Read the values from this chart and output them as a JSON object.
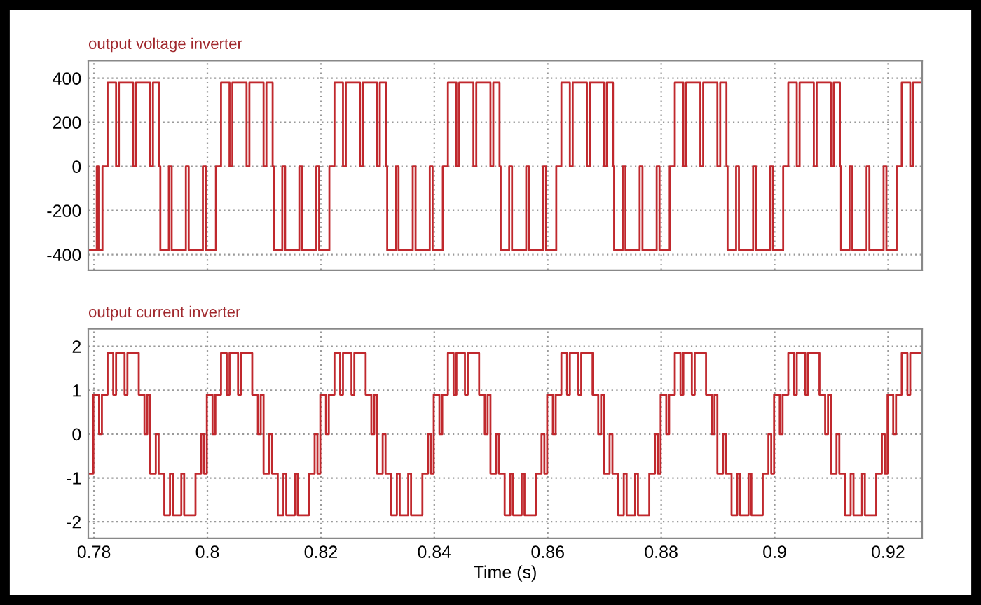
{
  "chart_data": [
    {
      "type": "step",
      "title": "output voltage inverter",
      "xlim": [
        0.779,
        0.926
      ],
      "xticks": [
        0.78,
        0.8,
        0.82,
        0.84,
        0.86,
        0.88,
        0.9,
        0.92
      ],
      "ylim": [
        -470,
        480
      ],
      "yticks": [
        -400,
        -200,
        0,
        200,
        400
      ],
      "grid": true,
      "tick_labels": "y",
      "x": [
        0.779,
        0.7805,
        0.7808,
        0.7815,
        0.7824,
        0.7839,
        0.7844,
        0.7869,
        0.7874,
        0.7899,
        0.7904,
        0.7915,
        0.7917,
        0.7932,
        0.7937,
        0.7962,
        0.7967,
        0.7992,
        0.7997,
        0.8015,
        0.8024,
        0.8039,
        0.8044,
        0.8069,
        0.8074,
        0.8099,
        0.8104,
        0.8115,
        0.8117,
        0.8132,
        0.8137,
        0.8162,
        0.8167,
        0.8192,
        0.8197,
        0.8215,
        0.8224,
        0.8239,
        0.8244,
        0.8269,
        0.8274,
        0.8299,
        0.8304,
        0.8315,
        0.8317,
        0.8332,
        0.8337,
        0.8362,
        0.8367,
        0.8392,
        0.8397,
        0.8415,
        0.8424,
        0.8439,
        0.8444,
        0.8469,
        0.8474,
        0.8499,
        0.8504,
        0.8515,
        0.8517,
        0.8532,
        0.8537,
        0.8562,
        0.8567,
        0.8592,
        0.8597,
        0.8615,
        0.8624,
        0.8639,
        0.8644,
        0.8669,
        0.8674,
        0.8699,
        0.8704,
        0.8715,
        0.8717,
        0.8732,
        0.8737,
        0.8762,
        0.8767,
        0.8792,
        0.8797,
        0.8815,
        0.8824,
        0.8839,
        0.8844,
        0.8869,
        0.8874,
        0.8899,
        0.8904,
        0.8915,
        0.8917,
        0.8932,
        0.8937,
        0.8962,
        0.8967,
        0.8992,
        0.8997,
        0.9015,
        0.9024,
        0.9039,
        0.9044,
        0.9069,
        0.9074,
        0.9099,
        0.9104,
        0.9115,
        0.9117,
        0.9132,
        0.9137,
        0.9162,
        0.9167,
        0.9192,
        0.9197,
        0.9215,
        0.9224,
        0.9239,
        0.9244,
        0.926
      ],
      "series": [
        {
          "color": "#c0282d",
          "values": [
            -380,
            0,
            -380,
            0,
            380,
            0,
            380,
            0,
            380,
            0,
            380,
            0,
            -380,
            0,
            -380,
            0,
            -380,
            0,
            -380,
            0,
            380,
            0,
            380,
            0,
            380,
            0,
            380,
            0,
            -380,
            0,
            -380,
            0,
            -380,
            0,
            -380,
            0,
            380,
            0,
            380,
            0,
            380,
            0,
            380,
            0,
            -380,
            0,
            -380,
            0,
            -380,
            0,
            -380,
            0,
            380,
            0,
            380,
            0,
            380,
            0,
            380,
            0,
            -380,
            0,
            -380,
            0,
            -380,
            0,
            -380,
            0,
            380,
            0,
            380,
            0,
            380,
            0,
            380,
            0,
            -380,
            0,
            -380,
            0,
            -380,
            0,
            -380,
            0,
            380,
            0,
            380,
            0,
            380,
            0,
            380,
            0,
            -380,
            0,
            -380,
            0,
            -380,
            0,
            -380,
            0,
            380,
            0,
            380,
            0,
            380,
            0,
            380,
            0,
            -380,
            0,
            -380,
            0,
            -380,
            0,
            -380,
            0,
            380,
            0,
            380,
            380
          ]
        }
      ]
    },
    {
      "type": "step",
      "title": "output current inverter",
      "xlabel": "Time (s)",
      "xlim": [
        0.779,
        0.926
      ],
      "xticks": [
        0.78,
        0.8,
        0.82,
        0.84,
        0.86,
        0.88,
        0.9,
        0.92
      ],
      "ylim": [
        -2.38,
        2.4
      ],
      "yticks": [
        -2,
        -1,
        0,
        1,
        2
      ],
      "grid": true,
      "x": [
        0.779,
        0.7799,
        0.7809,
        0.7814,
        0.7824,
        0.7834,
        0.7839,
        0.7854,
        0.7859,
        0.7879,
        0.7889,
        0.7894,
        0.7899,
        0.7909,
        0.7914,
        0.7924,
        0.7934,
        0.7939,
        0.7954,
        0.7959,
        0.7979,
        0.7989,
        0.7994,
        0.7999,
        0.8009,
        0.8014,
        0.8024,
        0.8034,
        0.8039,
        0.8054,
        0.8059,
        0.8079,
        0.8089,
        0.8094,
        0.8099,
        0.8109,
        0.8114,
        0.8124,
        0.8134,
        0.8139,
        0.8154,
        0.8159,
        0.8179,
        0.8189,
        0.8194,
        0.8199,
        0.8209,
        0.8214,
        0.8224,
        0.8234,
        0.8239,
        0.8254,
        0.8259,
        0.8279,
        0.8289,
        0.8294,
        0.8299,
        0.8309,
        0.8314,
        0.8324,
        0.8334,
        0.8339,
        0.8354,
        0.8359,
        0.8379,
        0.8389,
        0.8394,
        0.8399,
        0.8409,
        0.8414,
        0.8424,
        0.8434,
        0.8439,
        0.8454,
        0.8459,
        0.8479,
        0.8489,
        0.8494,
        0.8499,
        0.8509,
        0.8514,
        0.8524,
        0.8534,
        0.8539,
        0.8554,
        0.8559,
        0.8579,
        0.8589,
        0.8594,
        0.8599,
        0.8609,
        0.8614,
        0.8624,
        0.8634,
        0.8639,
        0.8654,
        0.8659,
        0.8679,
        0.8689,
        0.8694,
        0.8699,
        0.8709,
        0.8714,
        0.8724,
        0.8734,
        0.8739,
        0.8754,
        0.8759,
        0.8779,
        0.8789,
        0.8794,
        0.8799,
        0.8809,
        0.8814,
        0.8824,
        0.8834,
        0.8839,
        0.8854,
        0.8859,
        0.8879,
        0.8889,
        0.8894,
        0.8899,
        0.8909,
        0.8914,
        0.8924,
        0.8934,
        0.8939,
        0.8954,
        0.8959,
        0.8979,
        0.8989,
        0.8994,
        0.8999,
        0.9009,
        0.9014,
        0.9024,
        0.9034,
        0.9039,
        0.9054,
        0.9059,
        0.9079,
        0.9089,
        0.9094,
        0.9099,
        0.9109,
        0.9114,
        0.9124,
        0.9134,
        0.9139,
        0.9154,
        0.9159,
        0.9179,
        0.9189,
        0.9194,
        0.9199,
        0.9209,
        0.9214,
        0.9224,
        0.9234,
        0.9239,
        0.926
      ],
      "series": [
        {
          "color": "#c0282d",
          "values": [
            -0.9,
            0.9,
            0,
            0.9,
            1.85,
            0.9,
            1.85,
            0.9,
            1.85,
            0.9,
            0,
            0.9,
            -0.9,
            0,
            -0.9,
            -1.85,
            -0.9,
            -1.85,
            -0.9,
            -1.85,
            -0.9,
            0,
            -0.9,
            0.9,
            0,
            0.9,
            1.85,
            0.9,
            1.85,
            0.9,
            1.85,
            0.9,
            0,
            0.9,
            -0.9,
            0,
            -0.9,
            -1.85,
            -0.9,
            -1.85,
            -0.9,
            -1.85,
            -0.9,
            0,
            -0.9,
            0.9,
            0,
            0.9,
            1.85,
            0.9,
            1.85,
            0.9,
            1.85,
            0.9,
            0,
            0.9,
            -0.9,
            0,
            -0.9,
            -1.85,
            -0.9,
            -1.85,
            -0.9,
            -1.85,
            -0.9,
            0,
            -0.9,
            0.9,
            0,
            0.9,
            1.85,
            0.9,
            1.85,
            0.9,
            1.85,
            0.9,
            0,
            0.9,
            -0.9,
            0,
            -0.9,
            -1.85,
            -0.9,
            -1.85,
            -0.9,
            -1.85,
            -0.9,
            0,
            -0.9,
            0.9,
            0,
            0.9,
            1.85,
            0.9,
            1.85,
            0.9,
            1.85,
            0.9,
            0,
            0.9,
            -0.9,
            0,
            -0.9,
            -1.85,
            -0.9,
            -1.85,
            -0.9,
            -1.85,
            -0.9,
            0,
            -0.9,
            0.9,
            0,
            0.9,
            1.85,
            0.9,
            1.85,
            0.9,
            1.85,
            0.9,
            0,
            0.9,
            -0.9,
            0,
            -0.9,
            -1.85,
            -0.9,
            -1.85,
            -0.9,
            -1.85,
            -0.9,
            0,
            -0.9,
            0.9,
            0,
            0.9,
            1.85,
            0.9,
            1.85,
            0.9,
            1.85,
            0.9,
            0,
            0.9,
            -0.9,
            0,
            -0.9,
            -1.85,
            -0.9,
            -1.85,
            -0.9,
            -1.85,
            -0.9,
            0,
            -0.9,
            0.9,
            0,
            0.9,
            1.85,
            0.9,
            1.85,
            1.85
          ]
        }
      ]
    }
  ]
}
